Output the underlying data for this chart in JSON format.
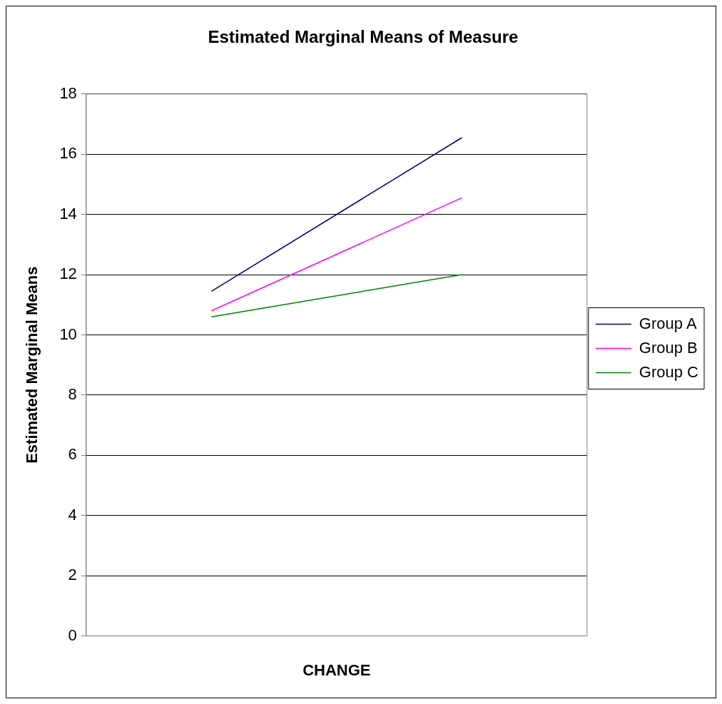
{
  "chart_data": {
    "type": "line",
    "title": "Estimated Marginal Means of Measure",
    "xlabel": "CHANGE",
    "ylabel": "Estimated Marginal Means",
    "categories": [
      null,
      null
    ],
    "series": [
      {
        "name": "Group A",
        "color": "#000080",
        "values": [
          11.45,
          16.55
        ]
      },
      {
        "name": "Group B",
        "color": "#ff00ff",
        "values": [
          10.8,
          14.55
        ]
      },
      {
        "name": "Group C",
        "color": "#008000",
        "values": [
          10.6,
          12.0
        ]
      }
    ],
    "ylim": [
      0,
      18
    ],
    "yticks": [
      0,
      2,
      4,
      6,
      8,
      10,
      12,
      14,
      16,
      18
    ],
    "grid": "y",
    "legend": "right",
    "marker": "none",
    "line_style": "solid",
    "tick_labels": "y"
  }
}
